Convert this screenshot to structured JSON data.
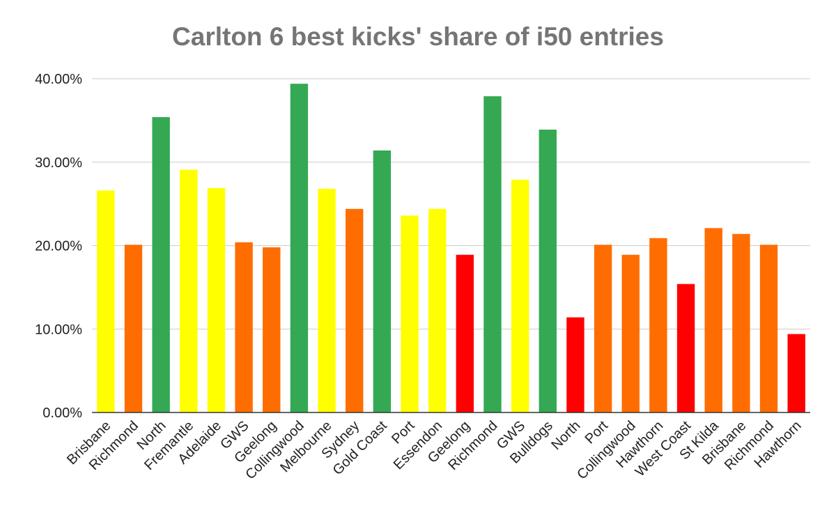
{
  "chart_data": {
    "type": "bar",
    "title": "Carlton 6 best kicks' share of i50 entries",
    "xlabel": "",
    "ylabel": "",
    "ylim": [
      0,
      40
    ],
    "yticks": [
      "0.00%",
      "10.00%",
      "20.00%",
      "30.00%",
      "40.00%"
    ],
    "grid": true,
    "legend": "none",
    "categories": [
      "Brisbane",
      "Richmond",
      "North",
      "Fremantle",
      "Adelaide",
      "GWS",
      "Geelong",
      "Collingwood",
      "Melbourne",
      "Sydney",
      "Gold Coast",
      "Port",
      "Essendon",
      "Geelong",
      "Richmond",
      "GWS",
      "Bulldogs",
      "North",
      "Port",
      "Collingwood",
      "Hawthorn",
      "West Coast",
      "St Kilda",
      "Brisbane",
      "Richmond",
      "Hawthorn"
    ],
    "values": [
      26.6,
      20.1,
      35.4,
      29.1,
      26.9,
      20.4,
      19.8,
      39.4,
      26.8,
      24.4,
      31.4,
      23.6,
      24.4,
      18.9,
      37.9,
      27.9,
      33.9,
      11.4,
      20.1,
      18.9,
      20.9,
      15.4,
      22.1,
      21.4,
      20.1,
      9.4
    ],
    "colors": [
      "#ffff00",
      "#ff6d01",
      "#34a853",
      "#ffff00",
      "#ffff00",
      "#ff6d01",
      "#ff6d01",
      "#34a853",
      "#ffff00",
      "#ff6d01",
      "#34a853",
      "#ffff00",
      "#ffff00",
      "#ff0000",
      "#34a853",
      "#ffff00",
      "#34a853",
      "#ff0000",
      "#ff6d01",
      "#ff6d01",
      "#ff6d01",
      "#ff0000",
      "#ff6d01",
      "#ff6d01",
      "#ff6d01",
      "#ff0000"
    ]
  }
}
